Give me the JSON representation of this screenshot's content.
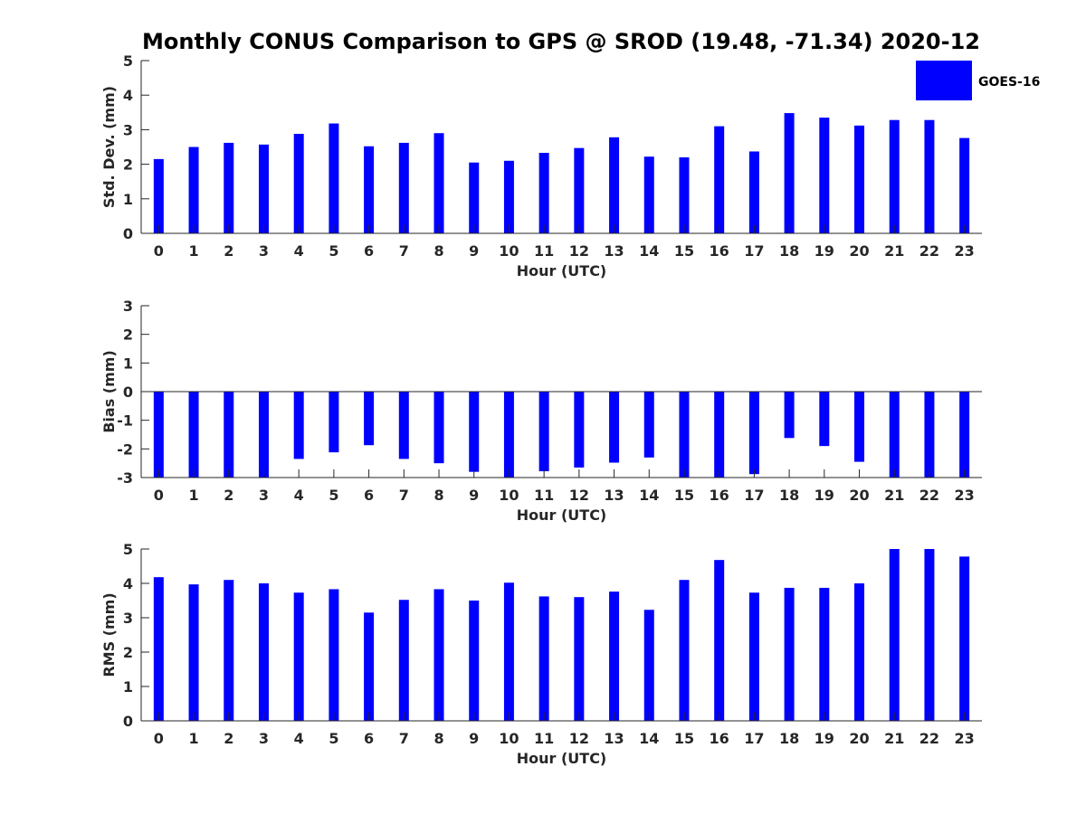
{
  "title": "Monthly CONUS Comparison to GPS @ SROD (19.48, -71.34) 2020-12",
  "legend": {
    "label": "GOES-16",
    "color": "#0000ff",
    "position": "top-right"
  },
  "chart_data": [
    {
      "type": "bar",
      "id": "std",
      "ylabel": "Std. Dev. (mm)",
      "xlabel": "Hour (UTC)",
      "ylim": [
        0,
        5
      ],
      "yticks": [
        0,
        1,
        2,
        3,
        4,
        5
      ],
      "categories": [
        "0",
        "1",
        "2",
        "3",
        "4",
        "5",
        "6",
        "7",
        "8",
        "9",
        "10",
        "11",
        "12",
        "13",
        "14",
        "15",
        "16",
        "17",
        "18",
        "19",
        "20",
        "21",
        "22",
        "23"
      ],
      "series": [
        {
          "name": "GOES-16",
          "values": [
            2.15,
            2.5,
            2.62,
            2.57,
            2.88,
            3.18,
            2.52,
            2.62,
            2.9,
            2.05,
            2.1,
            2.33,
            2.47,
            2.78,
            2.22,
            2.2,
            3.1,
            2.37,
            3.48,
            3.35,
            3.12,
            3.28,
            3.28,
            2.76
          ]
        }
      ]
    },
    {
      "type": "bar",
      "id": "bias",
      "ylabel": "Bias (mm)",
      "xlabel": "Hour (UTC)",
      "ylim": [
        -3,
        3
      ],
      "yticks": [
        -3,
        -2,
        -1,
        0,
        1,
        2,
        3
      ],
      "categories": [
        "0",
        "1",
        "2",
        "3",
        "4",
        "5",
        "6",
        "7",
        "8",
        "9",
        "10",
        "11",
        "12",
        "13",
        "14",
        "15",
        "16",
        "17",
        "18",
        "19",
        "20",
        "21",
        "22",
        "23"
      ],
      "series": [
        {
          "name": "GOES-16",
          "values": [
            -3.0,
            -3.0,
            -3.0,
            -3.0,
            -2.35,
            -2.12,
            -1.87,
            -2.35,
            -2.5,
            -2.8,
            -3.0,
            -2.78,
            -2.65,
            -2.48,
            -2.3,
            -3.0,
            -3.0,
            -2.88,
            -1.62,
            -1.9,
            -2.45,
            -3.0,
            -3.0,
            -3.0
          ]
        }
      ]
    },
    {
      "type": "bar",
      "id": "rms",
      "ylabel": "RMS (mm)",
      "xlabel": "Hour (UTC)",
      "ylim": [
        0,
        5
      ],
      "yticks": [
        0,
        1,
        2,
        3,
        4,
        5
      ],
      "categories": [
        "0",
        "1",
        "2",
        "3",
        "4",
        "5",
        "6",
        "7",
        "8",
        "9",
        "10",
        "11",
        "12",
        "13",
        "14",
        "15",
        "16",
        "17",
        "18",
        "19",
        "20",
        "21",
        "22",
        "23"
      ],
      "series": [
        {
          "name": "GOES-16",
          "values": [
            4.18,
            3.97,
            4.1,
            4.0,
            3.73,
            3.83,
            3.15,
            3.52,
            3.83,
            3.5,
            4.02,
            3.62,
            3.6,
            3.76,
            3.23,
            4.1,
            4.68,
            3.73,
            3.87,
            3.87,
            4.0,
            5.0,
            5.0,
            4.78
          ]
        }
      ]
    }
  ]
}
